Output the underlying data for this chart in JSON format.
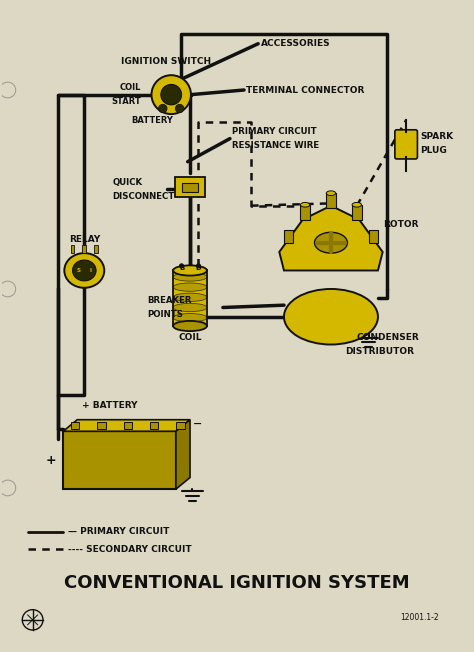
{
  "bg_color": "#ddd8c4",
  "title": "CONVENTIONAL IGNITION SYSTEM",
  "title_fontsize": 13,
  "part_number": "12001.1-2",
  "yellow": "#d4b800",
  "dark_yellow": "#a89200",
  "olive": "#8a7800",
  "black": "#111111",
  "gray": "#888888",
  "wire_lw": 2.5,
  "dashed_lw": 1.8,
  "labels": {
    "ignition_switch": "IGNITION SWITCH",
    "accessories": "ACCESSORIES",
    "coil_label": "COIL",
    "start_label": "START",
    "battery_label": "BATTERY",
    "terminal_connector": "TERMINAL CONNECTOR",
    "primary_circuit_wire_1": "PRIMARY CIRCUIT",
    "primary_circuit_wire_2": "RESISTANCE WIRE",
    "quick_disconnect_1": "QUICK",
    "quick_disconnect_2": "DISCONNECT",
    "relay": "RELAY",
    "coil": "COIL",
    "spark_plug_1": "SPARK",
    "spark_plug_2": "PLUG",
    "battery_plus": "+ BATTERY",
    "battery_minus": "−",
    "breaker_points_1": "BREAKER",
    "breaker_points_2": "POINTS",
    "rotor": "ROTOR",
    "condenser": "CONDENSER",
    "distributor": "DISTRIBUTOR",
    "primary_legend": "— PRIMARY CIRCUIT",
    "secondary_legend": "---- SECONDARY CIRCUIT"
  }
}
